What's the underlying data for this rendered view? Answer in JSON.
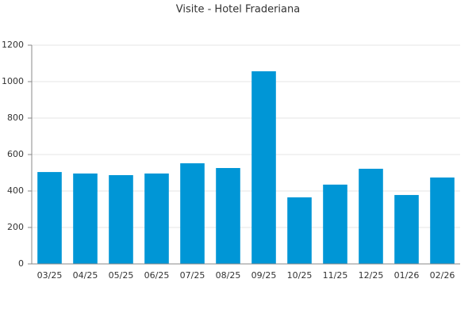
{
  "chart_data": {
    "type": "bar",
    "title": "Visite - Hotel Fraderiana",
    "categories": [
      "03/25",
      "04/25",
      "05/25",
      "06/25",
      "07/25",
      "08/25",
      "09/25",
      "10/25",
      "11/25",
      "12/25",
      "01/26",
      "02/26"
    ],
    "values": [
      504,
      496,
      487,
      496,
      552,
      526,
      1057,
      365,
      435,
      522,
      378,
      474
    ],
    "color": "#0096d6",
    "ylim": [
      0,
      1200
    ],
    "yticks": [
      0,
      200,
      400,
      600,
      800,
      1000,
      1200
    ],
    "grid": true
  }
}
